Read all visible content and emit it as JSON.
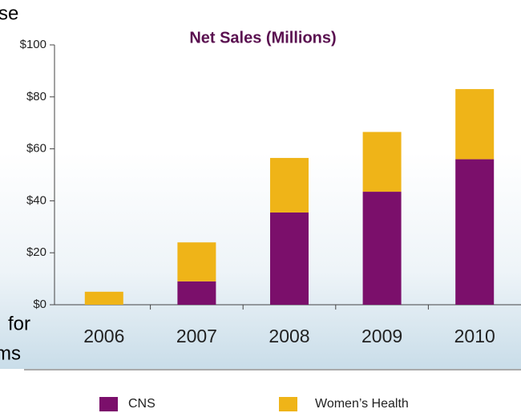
{
  "chart_data": {
    "type": "stacked_bar",
    "title": "Net Sales (Millions)",
    "annotations": [
      "se",
      "for",
      "ms"
    ],
    "categories": [
      "2006",
      "2007",
      "2008",
      "2009",
      "2010"
    ],
    "series": [
      {
        "name": "CNS",
        "color": "#7b0f6b",
        "values": [
          0,
          9,
          35.5,
          43.5,
          56
        ]
      },
      {
        "name": "Women’s Health",
        "color": "#efb418",
        "values": [
          5,
          15,
          21,
          23,
          27
        ]
      }
    ],
    "ylim": [
      0,
      100
    ],
    "yticks": [
      {
        "value": 0,
        "label": "$0"
      },
      {
        "value": 20,
        "label": "$20"
      },
      {
        "value": 40,
        "label": "$40"
      },
      {
        "value": 60,
        "label": "$60"
      },
      {
        "value": 80,
        "label": "$80"
      },
      {
        "value": 100,
        "label": "$100"
      }
    ],
    "grid": false
  }
}
